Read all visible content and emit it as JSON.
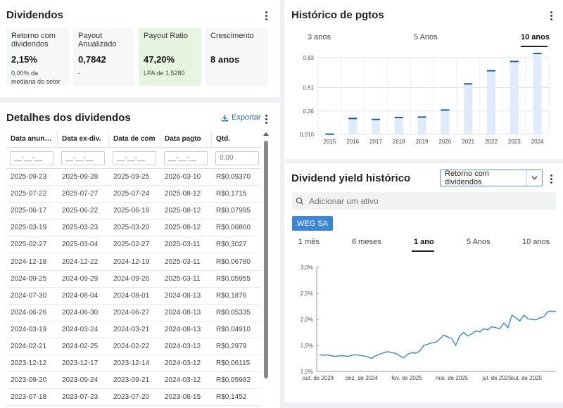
{
  "dividendos": {
    "title": "Dividendos",
    "metrics": [
      {
        "label": "Retorno com dividendos",
        "value": "2,15%",
        "sub": "0,00% da mediana do setor"
      },
      {
        "label": "Payout Anualizado",
        "value": "0,7842",
        "sub": "-"
      },
      {
        "label": "Payout Ratio",
        "value": "47,20%",
        "sub": "LPA de 1,5280"
      },
      {
        "label": "Crescimento",
        "value": "8 anos",
        "sub": ""
      }
    ]
  },
  "detalhes": {
    "title": "Detalhes dos dividendos",
    "export_label": "Exportar",
    "columns": [
      "Data anunciada",
      "Data ex-div.",
      "Data de com",
      "Data pagto",
      "Qtd."
    ],
    "date_placeholder": "__-__-__",
    "qty_placeholder": "0.00",
    "rows": [
      [
        "2025-09-23",
        "2025-09-28",
        "2025-09-25",
        "2026-03-10",
        "R$0,09370"
      ],
      [
        "2025-07-22",
        "2025-07-27",
        "2025-07-24",
        "2025-08-12",
        "R$0,1715"
      ],
      [
        "2025-06-17",
        "2025-06-22",
        "2025-06-19",
        "2025-08-12",
        "R$0,07995"
      ],
      [
        "2025-03-19",
        "2025-03-23",
        "2025-03-20",
        "2025-08-12",
        "R$0,06860"
      ],
      [
        "2025-02-27",
        "2025-03-04",
        "2025-02-27",
        "2025-03-11",
        "R$0,3027"
      ],
      [
        "2024-12-18",
        "2024-12-22",
        "2024-12-19",
        "2025-03-11",
        "R$0,06780"
      ],
      [
        "2024-09-25",
        "2024-09-29",
        "2024-09-26",
        "2025-03-11",
        "R$0,05955"
      ],
      [
        "2024-07-30",
        "2024-08-04",
        "2024-08-01",
        "2024-08-13",
        "R$0,1876"
      ],
      [
        "2024-06-26",
        "2024-06-30",
        "2024-06-27",
        "2024-08-13",
        "R$0,05335"
      ],
      [
        "2024-03-19",
        "2024-03-24",
        "2024-03-21",
        "2024-08-13",
        "R$0,04910"
      ],
      [
        "2024-02-21",
        "2024-02-25",
        "2024-02-22",
        "2024-03-12",
        "R$0,2979"
      ],
      [
        "2023-12-12",
        "2023-12-17",
        "2023-12-14",
        "2024-03-12",
        "R$0,06115"
      ],
      [
        "2023-09-20",
        "2023-09-24",
        "2023-09-21",
        "2024-03-12",
        "R$0,05982"
      ],
      [
        "2023-07-18",
        "2023-07-23",
        "2023-07-20",
        "2023-08-15",
        "R$0,1452"
      ]
    ]
  },
  "historico": {
    "title": "Histórico de pgtos",
    "tabs": [
      "3 anos",
      "5 Anos",
      "10 anos"
    ],
    "active_tab": "10 anos"
  },
  "yield": {
    "title": "Dividend yield histórico",
    "select_value": "Retorno com dividendos",
    "search_placeholder": "Adicionar um ativo",
    "chip": "WEG SA",
    "tabs": [
      "1 mês",
      "6 meses",
      "1 ano",
      "5 Anos",
      "10 anos"
    ],
    "active_tab": "1 ano"
  },
  "chart_data": [
    {
      "type": "bar",
      "categories": [
        "2015",
        "2016",
        "2017",
        "2018",
        "2019",
        "2020",
        "2021",
        "2022",
        "2023",
        "2024"
      ],
      "values": [
        0.012,
        0.18,
        0.17,
        0.19,
        0.195,
        0.27,
        0.55,
        0.69,
        0.79,
        0.875
      ],
      "yticks": [
        "0,010",
        "0,26",
        "0,51",
        "0,83"
      ],
      "ytick_values": [
        0.01,
        0.26,
        0.51,
        0.83
      ],
      "ylim": [
        0.01,
        0.83
      ],
      "grid": true
    },
    {
      "type": "line",
      "xticks": [
        "out. de 2024",
        "dez. de 2024",
        "fev. de 2025",
        "mai. de 2025",
        "jul. de 2025",
        "out. de 2025"
      ],
      "yticks": [
        "1,0%",
        "1,5%",
        "2,0%",
        "2,5%",
        "3,0%"
      ],
      "ylim": [
        1.0,
        3.0
      ],
      "series": [
        {
          "color": "#3b86d9",
          "values": [
            1.32,
            1.31,
            1.32,
            1.3,
            1.29,
            1.3,
            1.3,
            1.29,
            1.31,
            1.32,
            1.31,
            1.3,
            1.28,
            1.25,
            1.3,
            1.33,
            1.36,
            1.38,
            1.36,
            1.35,
            1.3,
            1.26,
            1.33,
            1.36,
            1.35,
            1.39,
            1.5,
            1.52,
            1.55,
            1.56,
            1.62,
            1.7,
            1.66,
            1.63,
            1.5,
            1.68,
            1.75,
            1.68,
            1.72,
            1.78,
            1.76,
            1.82,
            1.8,
            1.86,
            1.84,
            1.82,
            1.93,
            1.84,
            2.08,
            2.03,
            1.97,
            2.08,
            2.01,
            2.0,
            1.99,
            2.03,
            2.05,
            2.15,
            2.16,
            2.15
          ]
        }
      ]
    }
  ]
}
